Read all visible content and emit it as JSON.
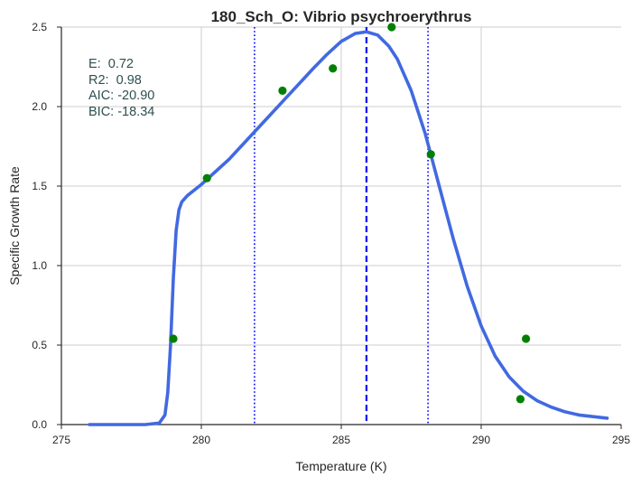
{
  "chart_data": {
    "type": "line",
    "title": "180_Sch_O: Vibrio  psychroerythrus",
    "xlabel": "Temperature (K)",
    "ylabel": "Specific Growth Rate",
    "xlim": [
      275,
      295
    ],
    "ylim": [
      0,
      2.5
    ],
    "x_ticks": [
      275,
      280,
      285,
      290,
      295
    ],
    "y_ticks": [
      0.0,
      0.5,
      1.0,
      1.5,
      2.0,
      2.5
    ],
    "x_tick_labels": [
      "275",
      "280",
      "285",
      "290",
      "295"
    ],
    "y_tick_labels": [
      "0.0",
      "0.5",
      "1.0",
      "1.5",
      "2.0",
      "2.5"
    ],
    "grid": true,
    "annotations": [
      "E:  0.72",
      "R2:  0.98",
      "AIC: -20.90",
      "BIC: -18.34"
    ],
    "colors": {
      "fit_line": "#4169e1",
      "points": "#008000",
      "vlines": "#0000ff",
      "grid": "#cccccc",
      "stats_text": "#2f4f4f"
    },
    "series": [
      {
        "type": "line",
        "x": [
          276.0,
          278.0,
          278.5,
          278.7,
          278.8,
          278.9,
          279.0,
          279.1,
          279.2,
          279.3,
          279.5,
          280.0,
          281.0,
          282.0,
          283.0,
          284.0,
          284.5,
          285.0,
          285.5,
          285.9,
          286.3,
          286.7,
          287.0,
          287.5,
          288.0,
          288.5,
          289.0,
          289.5,
          290.0,
          290.5,
          291.0,
          291.5,
          292.0,
          292.5,
          293.0,
          293.5,
          294.0,
          294.5
        ],
        "y": [
          0.0,
          0.0,
          0.01,
          0.06,
          0.2,
          0.5,
          0.92,
          1.22,
          1.35,
          1.4,
          1.44,
          1.51,
          1.67,
          1.86,
          2.05,
          2.24,
          2.33,
          2.41,
          2.46,
          2.47,
          2.45,
          2.38,
          2.3,
          2.1,
          1.83,
          1.5,
          1.17,
          0.87,
          0.62,
          0.43,
          0.3,
          0.21,
          0.15,
          0.11,
          0.08,
          0.06,
          0.05,
          0.04
        ]
      },
      {
        "type": "scatter",
        "x": [
          279.0,
          280.2,
          282.9,
          284.7,
          286.8,
          288.2,
          291.4,
          291.6
        ],
        "y": [
          0.54,
          1.55,
          2.1,
          2.24,
          2.5,
          1.7,
          0.16,
          0.54
        ]
      }
    ],
    "vlines": [
      {
        "x": 285.9,
        "style": "dashed"
      },
      {
        "x": 281.9,
        "style": "dotted"
      },
      {
        "x": 288.1,
        "style": "dotted"
      }
    ]
  }
}
